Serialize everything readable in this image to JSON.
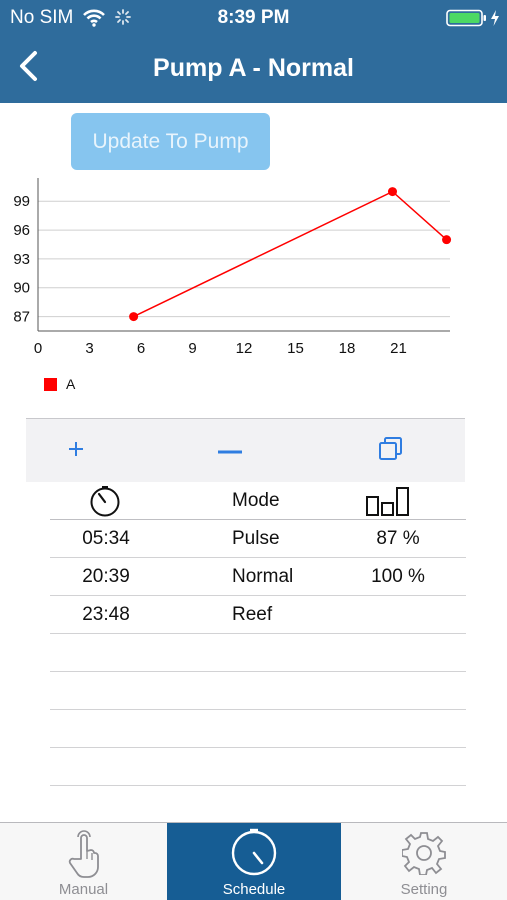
{
  "status_bar": {
    "carrier": "No SIM",
    "time": "8:39 PM",
    "icons": [
      "wifi-icon",
      "activity-spinner-icon",
      "battery-icon",
      "charging-bolt-icon"
    ]
  },
  "nav": {
    "title": "Pump A - Normal",
    "back_icon": "chevron-left-icon"
  },
  "update_button": {
    "label": "Update To Pump"
  },
  "chart_data": {
    "type": "line",
    "title": "",
    "xlabel": "",
    "ylabel": "",
    "xlim": [
      0,
      24
    ],
    "ylim": [
      85.5,
      101
    ],
    "x_ticks": [
      0,
      3,
      6,
      9,
      12,
      15,
      18,
      21
    ],
    "y_ticks": [
      87,
      90,
      93,
      96,
      99
    ],
    "grid": "horizontal",
    "legend_position": "bottom-left",
    "colors": {
      "series": "#ff0000",
      "grid": "#cfcfcf",
      "axis": "#555555"
    },
    "series": [
      {
        "name": "A",
        "x": [
          5.57,
          20.65,
          23.8
        ],
        "y": [
          87,
          100,
          95
        ]
      }
    ]
  },
  "toolbar": {
    "items": [
      {
        "name": "add-entry-button",
        "icon": "plus-icon"
      },
      {
        "name": "remove-entry-button",
        "icon": "minus-icon"
      },
      {
        "name": "copy-entry-button",
        "icon": "copy-icon"
      }
    ],
    "accent": "#2f7de1"
  },
  "schedule": {
    "header": {
      "time_icon": "timer-icon",
      "mode_label": "Mode",
      "level_icon": "bar-level-icon"
    },
    "rows": [
      {
        "time": "05:34",
        "mode": "Pulse",
        "level": "87 %"
      },
      {
        "time": "20:39",
        "mode": "Normal",
        "level": "100 %"
      },
      {
        "time": "23:48",
        "mode": "Reef",
        "level": ""
      }
    ],
    "empty_rows": 5
  },
  "tabs": [
    {
      "label": "Manual",
      "icon": "hand-tap-icon",
      "selected": false
    },
    {
      "label": "Schedule",
      "icon": "timer-icon",
      "selected": true
    },
    {
      "label": "Setting",
      "icon": "gear-icon",
      "selected": false
    }
  ],
  "colors": {
    "header": "#2f6c9c",
    "selected_tab": "#165d94",
    "button": "#86c5ef"
  }
}
